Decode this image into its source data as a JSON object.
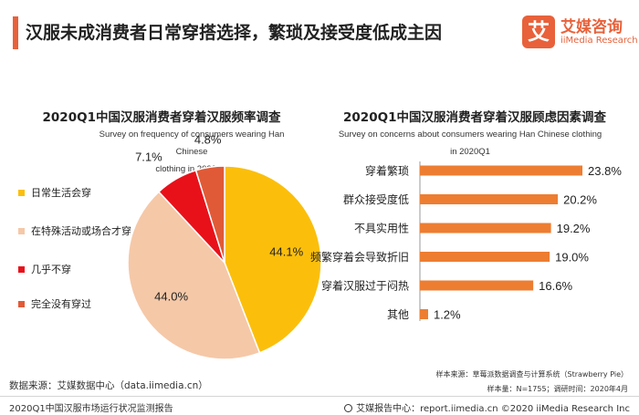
{
  "page": {
    "title": "汉服未成消费者日常穿搭选择，繁琐及接受度低成主因"
  },
  "logo": {
    "mark": "艾",
    "cn": "艾媒咨询",
    "en": "iiMedia Research"
  },
  "colors": {
    "accent": "#e8613a",
    "pie": [
      "#fbbf0b",
      "#f5c8a8",
      "#e8111a",
      "#e15a37"
    ],
    "bar": "#ed7d31"
  },
  "chart_data": [
    {
      "type": "pie",
      "title": "2020Q1中国汉服消费者穿着汉服频率调查",
      "subtitle_line1": "Survey on frequency of consumers wearing Han Chinese",
      "subtitle_line2": "clothing in 2020Q1",
      "categories": [
        "日常生活会穿",
        "在特殊活动或场合才穿",
        "几乎不穿",
        "完全没有穿过"
      ],
      "values": [
        44.1,
        44.0,
        7.1,
        4.8
      ],
      "labels": [
        "44.1%",
        "44.0%",
        "7.1%",
        "4.8%"
      ],
      "legend_position": "left"
    },
    {
      "type": "bar",
      "orientation": "horizontal",
      "title": "2020Q1中国汉服消费者穿着汉服顾虑因素调查",
      "subtitle_line1": "Survey on concerns about consumers wearing Han Chinese clothing",
      "subtitle_line2": "in 2020Q1",
      "categories": [
        "穿着繁琐",
        "群众接受度低",
        "不具实用性",
        "频繁穿着会导致折旧",
        "穿着汉服过于闷热",
        "其他"
      ],
      "values": [
        23.8,
        20.2,
        19.2,
        19.0,
        16.6,
        1.2
      ],
      "labels": [
        "23.8%",
        "20.2%",
        "19.2%",
        "19.0%",
        "16.6%",
        "1.2%"
      ],
      "xlim": [
        0,
        25
      ]
    }
  ],
  "footer": {
    "sample_source": "样本来源：草莓派数据调查与计算系统（Strawberry Pie）",
    "sample_info": "样本量：N=1755；调研时间：2020年4月",
    "data_source": "数据来源：艾媒数据中心（data.iimedia.cn）",
    "report_name": "2020Q1中国汉服市场运行状况监测报告",
    "report_center": "艾媒报告中心：report.iimedia.cn  ©2020  iiMedia Research  Inc"
  }
}
